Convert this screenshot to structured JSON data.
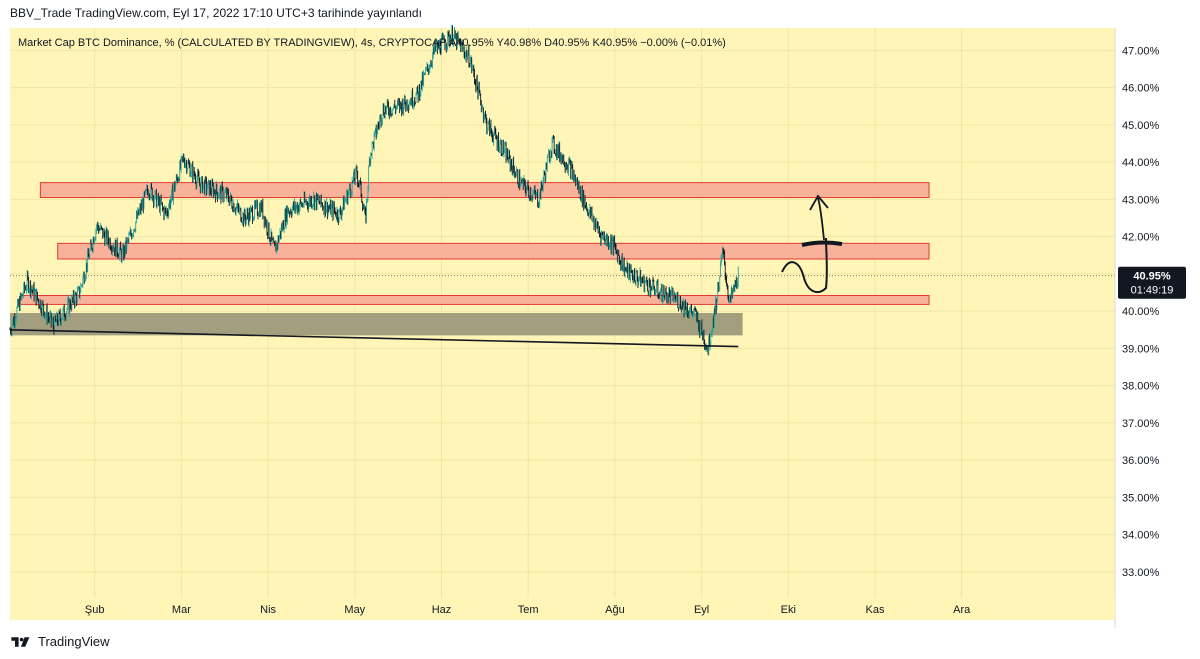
{
  "header": {
    "published": "BBV_Trade TradingView.com, Eyl 17, 2022 17:10 UTC+3 tarihinde yayınlandı"
  },
  "legend": {
    "symbol": "Market Cap BTC Dominance, % (CALCULATED BY TRADINGVIEW), 4s, CRYPTOCAP",
    "open": "A40.95%",
    "high": "Y40.98%",
    "low": "D40.95%",
    "close": "K40.95%",
    "change": "−0.00% (−0.01%)"
  },
  "price_tag": {
    "value": "40.95%",
    "countdown": "01:49:19"
  },
  "footer": {
    "brand": "TradingView"
  },
  "colors": {
    "background": "#fff5b6",
    "candle_up": "#26a69a",
    "candle_down": "#131722",
    "zone_red_fill": "#f8b29a",
    "zone_red_border": "#e53935",
    "zone_gray_fill": "#a39f7e",
    "tag_bg": "#131722",
    "tag_text": "#ffffff"
  },
  "chart_data": {
    "type": "line",
    "title": "Market Cap BTC Dominance, % (CALCULATED BY TRADINGVIEW)",
    "timeframe": "4s",
    "y_axis": {
      "ticks": [
        "33.00%",
        "34.00%",
        "35.00%",
        "36.00%",
        "37.00%",
        "38.00%",
        "39.00%",
        "40.00%",
        "41.00%",
        "42.00%",
        "43.00%",
        "44.00%",
        "45.00%",
        "46.00%",
        "47.00%"
      ],
      "range": [
        32.3,
        47.6
      ]
    },
    "x_axis": {
      "ticks": [
        "Şub",
        "Mar",
        "Nis",
        "May",
        "Haz",
        "Tem",
        "Ağu",
        "Eyl",
        "Eki",
        "Kas",
        "Ara"
      ]
    },
    "series": [
      {
        "values_by_month": [
          [
            0,
            39.5
          ],
          [
            0.2,
            40.8
          ],
          [
            0.5,
            39.6
          ],
          [
            0.8,
            40.5
          ],
          [
            1.0,
            42.3
          ],
          [
            1.1,
            42.0
          ],
          [
            1.3,
            41.5
          ],
          [
            1.6,
            43.3
          ],
          [
            1.8,
            42.6
          ],
          [
            2.0,
            44.1
          ],
          [
            2.2,
            43.4
          ],
          [
            2.5,
            43.1
          ],
          [
            2.7,
            42.5
          ],
          [
            2.9,
            42.8
          ],
          [
            3.05,
            41.6
          ],
          [
            3.2,
            42.7
          ],
          [
            3.5,
            43.0
          ],
          [
            3.8,
            42.6
          ],
          [
            4.0,
            43.7
          ],
          [
            4.05,
            43.2
          ],
          [
            4.1,
            42.4
          ],
          [
            4.15,
            44.2
          ],
          [
            4.3,
            45.4
          ],
          [
            4.5,
            45.5
          ],
          [
            4.7,
            45.8
          ],
          [
            4.9,
            47.0
          ],
          [
            5.1,
            47.4
          ],
          [
            5.3,
            46.8
          ],
          [
            5.5,
            45.0
          ],
          [
            5.7,
            44.3
          ],
          [
            5.9,
            43.4
          ],
          [
            6.1,
            43.0
          ],
          [
            6.25,
            44.5
          ],
          [
            6.45,
            43.9
          ],
          [
            6.65,
            42.8
          ],
          [
            6.8,
            42.1
          ],
          [
            6.95,
            41.8
          ],
          [
            7.1,
            41.1
          ],
          [
            7.3,
            40.8
          ],
          [
            7.5,
            40.5
          ],
          [
            7.7,
            40.3
          ],
          [
            7.9,
            39.9
          ],
          [
            8.05,
            39.0
          ],
          [
            8.15,
            40.3
          ],
          [
            8.22,
            41.6
          ],
          [
            8.3,
            40.2
          ],
          [
            8.4,
            40.95
          ]
        ]
      }
    ],
    "zones": [
      {
        "type": "resistance",
        "low": 43.05,
        "high": 43.45,
        "from_month": 0.35,
        "to_month": 10.6
      },
      {
        "type": "resistance",
        "low": 41.4,
        "high": 41.82,
        "from_month": 0.55,
        "to_month": 10.6
      },
      {
        "type": "support",
        "low": 40.18,
        "high": 40.42,
        "from_month": 0.12,
        "to_month": 10.6
      },
      {
        "type": "demand",
        "low": 39.35,
        "high": 39.95,
        "from_month": 0.0,
        "to_month": 8.45
      }
    ],
    "trendline": {
      "from": [
        0.0,
        39.5
      ],
      "to": [
        8.4,
        39.05
      ]
    },
    "last_price": 40.95
  }
}
